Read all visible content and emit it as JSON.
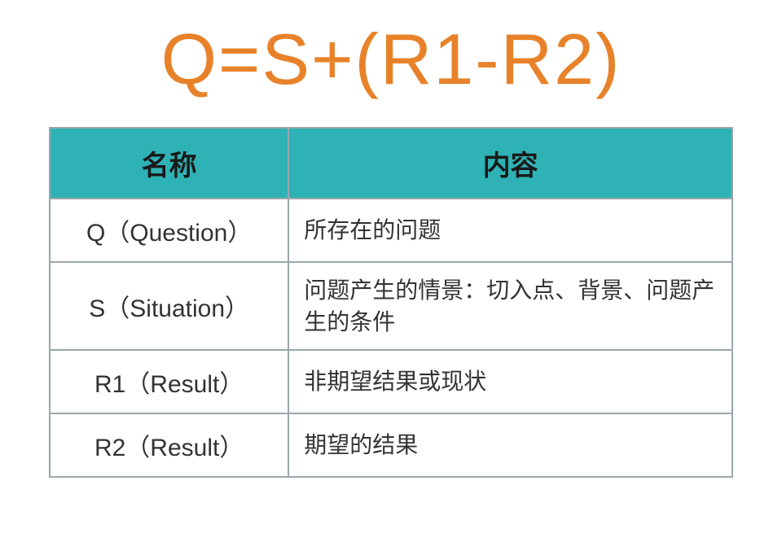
{
  "formula": {
    "text": "Q=S+(R1-R2)",
    "color": "#e8822a"
  },
  "table": {
    "border_color": "#9aa7ad",
    "header": {
      "bg_color": "#2fb2b5",
      "text_color": "#1a1a1a",
      "col_name": "名称",
      "col_content": "内容"
    },
    "body_text_color": "#333333",
    "body_bg_color": "#ffffff",
    "rows": [
      {
        "name": "Q（Question）",
        "content": "所存在的问题"
      },
      {
        "name": "S（Situation）",
        "content": "问题产生的情景：切入点、背景、问题产生的条件"
      },
      {
        "name": "R1（Result）",
        "content": "非期望结果或现状"
      },
      {
        "name": "R2（Result）",
        "content": "期望的结果"
      }
    ]
  }
}
